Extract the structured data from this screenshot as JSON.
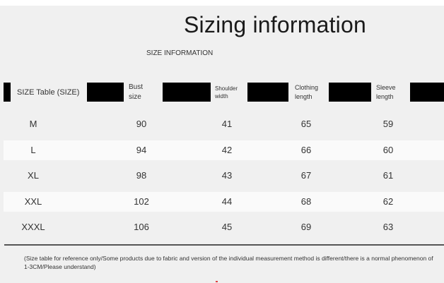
{
  "title": "Sizing information",
  "subtitle": "SIZE INFORMATION",
  "table": {
    "headers": {
      "size": "SIZE Table (SIZE)",
      "bust_line1": "Bust",
      "bust_line2": "size",
      "shoulder_line1": "Shoulder",
      "shoulder_line2": "width",
      "clothing_line1": "Clothing",
      "clothing_line2": "length",
      "sleeve_line1": "Sleeve",
      "sleeve_line2": "length"
    },
    "rows": [
      {
        "size": "M",
        "bust": "90",
        "shoulder": "41",
        "clothing": "65",
        "sleeve": "59"
      },
      {
        "size": "L",
        "bust": "94",
        "shoulder": "42",
        "clothing": "66",
        "sleeve": "60"
      },
      {
        "size": "XL",
        "bust": "98",
        "shoulder": "43",
        "clothing": "67",
        "sleeve": "61"
      },
      {
        "size": "XXL",
        "bust": "102",
        "shoulder": "44",
        "clothing": "68",
        "sleeve": "62"
      },
      {
        "size": "XXXL",
        "bust": "106",
        "shoulder": "45",
        "clothing": "69",
        "sleeve": "63"
      }
    ]
  },
  "note": "(Size table for reference only/Some products due to fabric and version of the individual measurement method is different/there is a normal phenomenon of 1-3CM/Please understand)"
}
